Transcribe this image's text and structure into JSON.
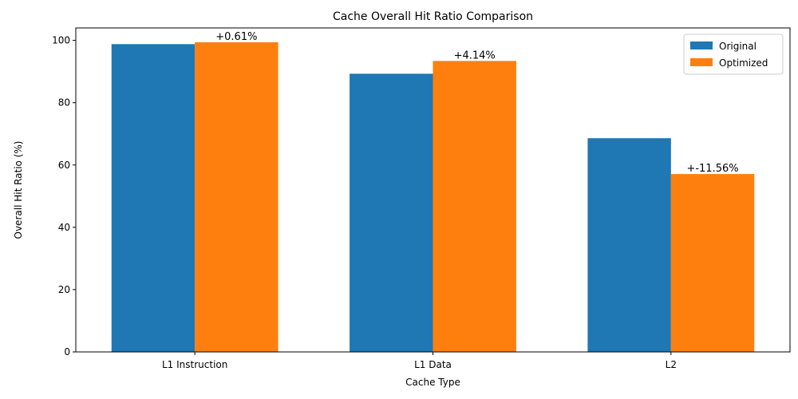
{
  "chart_data": {
    "type": "bar",
    "title": "Cache Overall Hit Ratio Comparison",
    "xlabel": "Cache Type",
    "ylabel": "Overall Hit Ratio (%)",
    "categories": [
      "L1 Instruction",
      "L1 Data",
      "L2"
    ],
    "series": [
      {
        "name": "Original",
        "color": "#1f77b4",
        "values": [
          98.8,
          89.3,
          68.6
        ]
      },
      {
        "name": "Optimized",
        "color": "#ff7f0e",
        "values": [
          99.4,
          93.4,
          57.1
        ]
      }
    ],
    "annotations": [
      "+0.61%",
      "+4.14%",
      "+-11.56%"
    ],
    "ylim": [
      0,
      104
    ],
    "yticks": [
      0,
      20,
      40,
      60,
      80,
      100
    ],
    "legend_position": "top-right",
    "grid": false
  }
}
